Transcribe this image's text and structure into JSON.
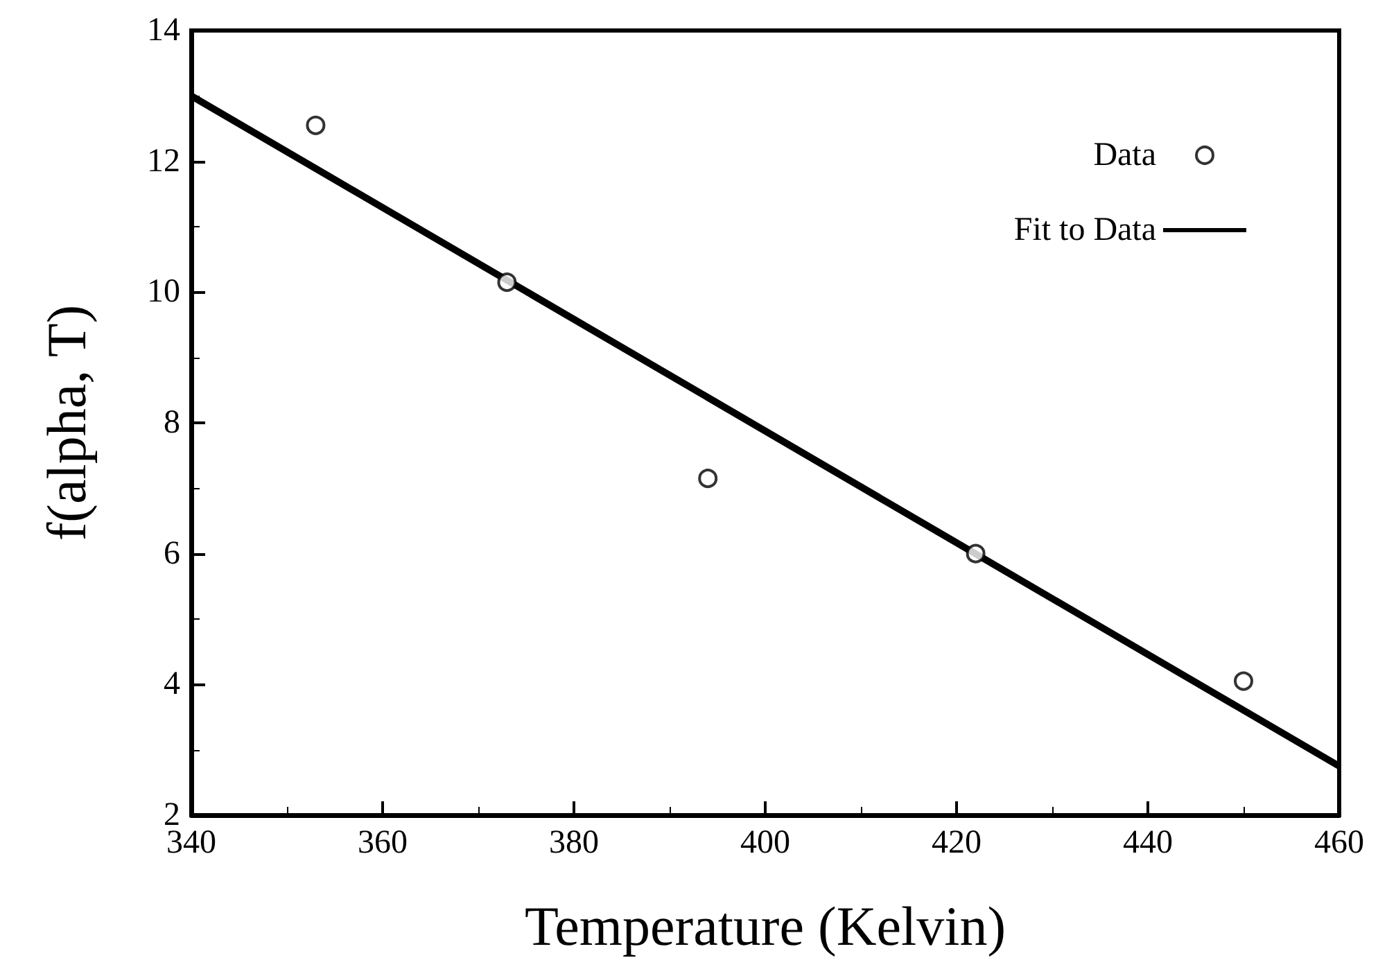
{
  "chart_data": {
    "type": "scatter",
    "xlabel": "Temperature (Kelvin)",
    "ylabel": "f(alpha, T)",
    "series": [
      {
        "name": "Data",
        "color": "#000000",
        "marker": "circle",
        "x": [
          353,
          373,
          394,
          422,
          450
        ],
        "values": [
          12.55,
          10.15,
          7.15,
          6.0,
          4.05
        ]
      },
      {
        "name": "Fit to Data",
        "type": "line",
        "color": "#000000",
        "line_style": "solid",
        "marker": "none",
        "x": [
          340,
          460
        ],
        "values": [
          13.0,
          2.75
        ]
      }
    ],
    "xlim": [
      340,
      460
    ],
    "xticks": [
      340,
      360,
      380,
      400,
      420,
      440,
      460
    ],
    "ylim": [
      2,
      14
    ],
    "yticks": [
      2,
      4,
      6,
      8,
      10,
      12,
      14
    ],
    "grid": false,
    "legend": "top right"
  }
}
